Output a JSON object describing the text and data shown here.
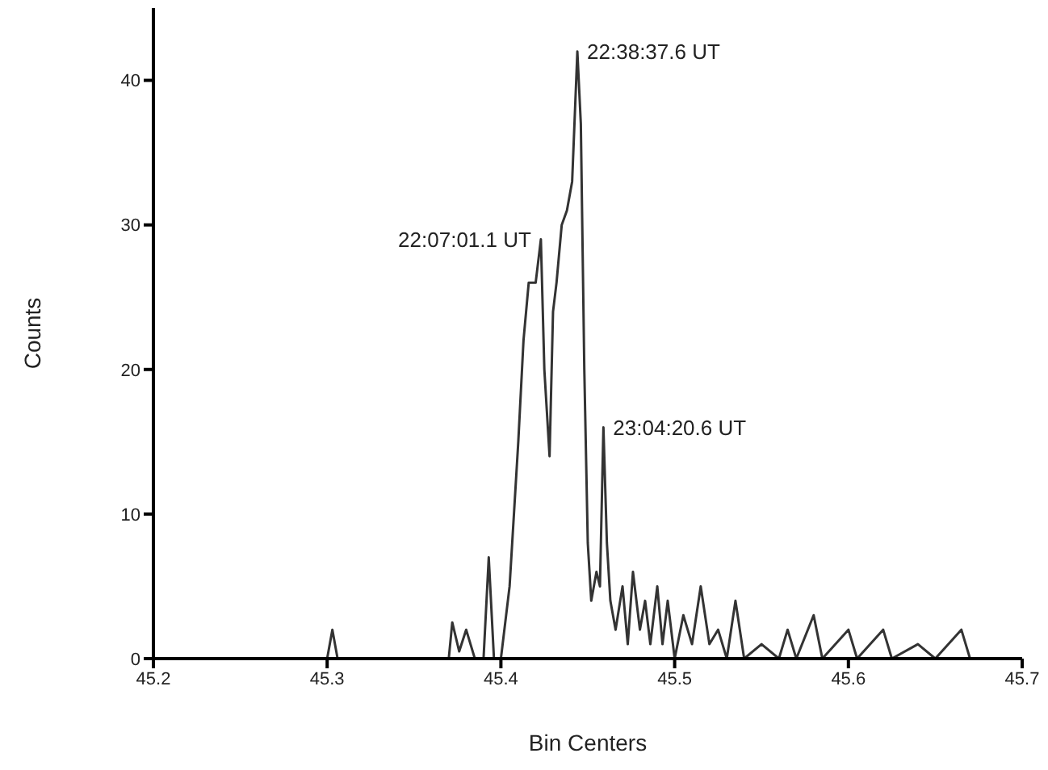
{
  "chart_data": {
    "type": "line",
    "xlabel": "Bin Centers",
    "ylabel": "Counts",
    "x": [
      45.2,
      45.25,
      45.3,
      45.303,
      45.306,
      45.37,
      45.372,
      45.376,
      45.38,
      45.385,
      45.39,
      45.393,
      45.396,
      45.4,
      45.405,
      45.41,
      45.413,
      45.416,
      45.42,
      45.423,
      45.425,
      45.428,
      45.43,
      45.432,
      45.435,
      45.438,
      45.441,
      45.444,
      45.446,
      45.448,
      45.45,
      45.452,
      45.455,
      45.457,
      45.459,
      45.461,
      45.463,
      45.466,
      45.47,
      45.473,
      45.476,
      45.48,
      45.483,
      45.486,
      45.49,
      45.493,
      45.496,
      45.5,
      45.505,
      45.51,
      45.515,
      45.52,
      45.525,
      45.53,
      45.535,
      45.54,
      45.55,
      45.56,
      45.565,
      45.57,
      45.58,
      45.585,
      45.6,
      45.605,
      45.62,
      45.625,
      45.64,
      45.65,
      45.665,
      45.67,
      45.7
    ],
    "series": [
      {
        "color": "#333333",
        "values": [
          0,
          0,
          0,
          2,
          0,
          0,
          2.5,
          0.5,
          2,
          0,
          0,
          7,
          0,
          0,
          5,
          15,
          22,
          26,
          26,
          29,
          20,
          14,
          24,
          26,
          30,
          31,
          33,
          42,
          37,
          20,
          8,
          4,
          6,
          5,
          16,
          8,
          4,
          2,
          5,
          1,
          6,
          2,
          4,
          1,
          5,
          1,
          4,
          0,
          3,
          1,
          5,
          1,
          2,
          0,
          4,
          0,
          1,
          0,
          2,
          0,
          3,
          0,
          2,
          0,
          2,
          0,
          1,
          0,
          2,
          0,
          0
        ]
      }
    ],
    "xlim": [
      45.2,
      45.7
    ],
    "xticks": [
      45.2,
      45.3,
      45.4,
      45.5,
      45.6,
      45.7
    ],
    "ylim": [
      0,
      45
    ],
    "yticks": [
      0,
      10,
      20,
      30,
      40
    ],
    "grid": false,
    "legend": false,
    "marker": "none",
    "line_style": "solid",
    "annotations": [
      {
        "text": "22:38:37.6 UT",
        "x": 45.444,
        "y": 42
      },
      {
        "text": "22:07:01.1 UT",
        "x": 45.423,
        "y": 29
      },
      {
        "text": "23:04:20.6 UT",
        "x": 45.459,
        "y": 16
      }
    ]
  }
}
